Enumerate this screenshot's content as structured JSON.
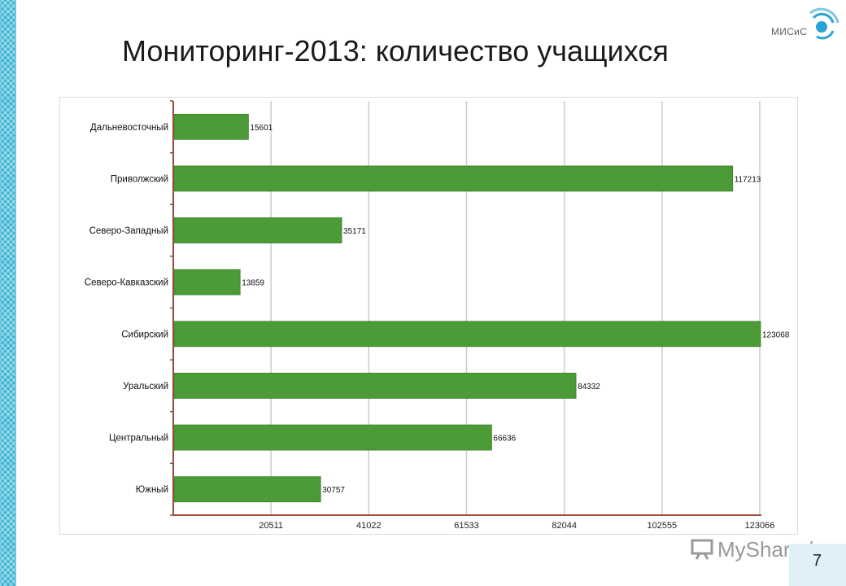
{
  "slide": {
    "title": "Мониторинг-2013: количество учащихся",
    "logo_text": "МИСиС",
    "page_number": "7",
    "watermark": "MyShared"
  },
  "colors": {
    "bar": "#4b9b36",
    "bar_edge": "#3d7f2c",
    "axis": "#9b4a3a",
    "grid": "#cccccc",
    "accent": "#39b3d2"
  },
  "chart_data": {
    "type": "bar",
    "orientation": "horizontal",
    "title": "",
    "xlabel": "",
    "ylabel": "",
    "categories": [
      "Дальневосточный",
      "Приволжский",
      "Северо-Западный",
      "Северо-Кавказский",
      "Сибирский",
      "Уральский",
      "Центральный",
      "Южный"
    ],
    "values": [
      15601,
      117213,
      35171,
      13859,
      123068,
      84332,
      66636,
      30757
    ],
    "data_labels": [
      "15601",
      "117213",
      "35171",
      "13859",
      "123068",
      "84332",
      "66636",
      "30757"
    ],
    "x_ticks": [
      20511,
      41022,
      61533,
      82044,
      102555,
      123066
    ],
    "x_tick_labels": [
      "20511",
      "41022",
      "61533",
      "82044",
      "102555",
      "123066"
    ],
    "xlim": [
      0,
      123066
    ],
    "grid": true,
    "legend": "none"
  }
}
